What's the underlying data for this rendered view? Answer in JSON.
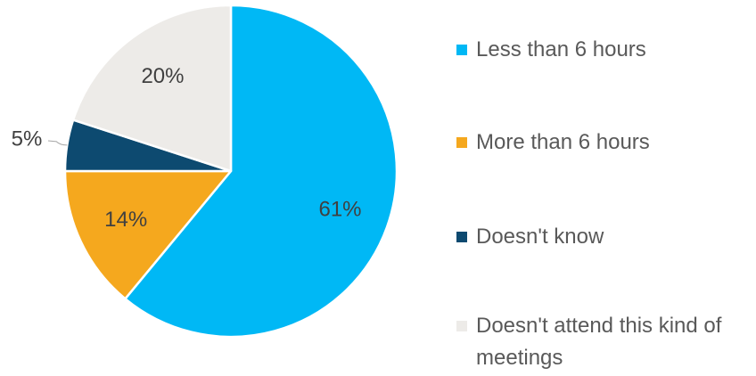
{
  "chart_data": {
    "type": "pie",
    "categories": [
      "Less than 6 hours",
      "More than 6 hours",
      "Doesn't know",
      "Doesn't attend this kind of meetings"
    ],
    "values": [
      61,
      14,
      5,
      20
    ],
    "value_labels": [
      "61%",
      "14%",
      "5%",
      "20%"
    ],
    "colors": [
      "#00B8F5",
      "#F5A81E",
      "#0D4A70",
      "#EDEBE8"
    ],
    "start_angle_deg": 0,
    "direction": "clockwise",
    "legend_position": "right",
    "title": ""
  }
}
